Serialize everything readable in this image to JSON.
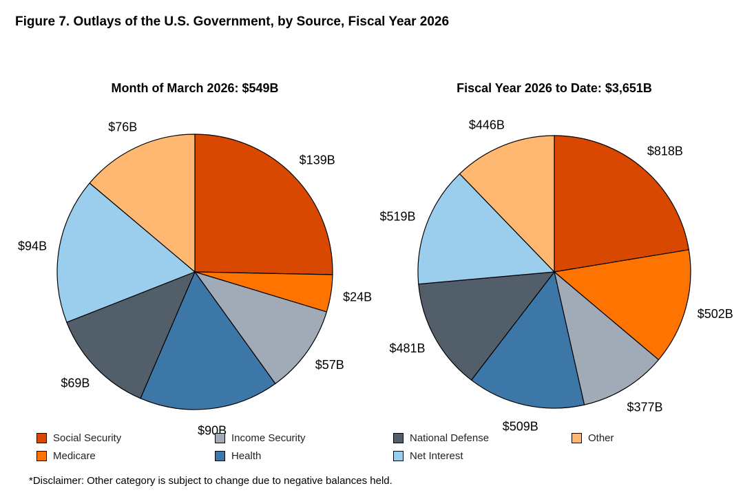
{
  "title": "Figure 7. Outlays of the U.S. Government, by Source, Fiscal Year 2026",
  "disclaimer": "*Disclaimer: Other category is subject to change due to negative balances held.",
  "chart_data": [
    {
      "type": "pie",
      "title": "Month of March 2026: $549B",
      "categories": [
        "Social Security",
        "Medicare",
        "Income Security",
        "Health",
        "National Defense",
        "Net Interest",
        "Other"
      ],
      "values": [
        139,
        24,
        57,
        90,
        69,
        94,
        76
      ],
      "labels": [
        "$139B",
        "$24B",
        "$57B",
        "$90B",
        "$69B",
        "$94B",
        "$76B"
      ],
      "start": "top, clockwise"
    },
    {
      "type": "pie",
      "title": "Fiscal Year 2026 to Date: $3,651B",
      "categories": [
        "Social Security",
        "Medicare",
        "Income Security",
        "Health",
        "National Defense",
        "Net Interest",
        "Other"
      ],
      "values": [
        818,
        502,
        377,
        509,
        481,
        519,
        446
      ],
      "labels": [
        "$818B",
        "$502B",
        "$377B",
        "$509B",
        "$481B",
        "$519B",
        "$446B"
      ],
      "start": "top, clockwise"
    }
  ],
  "legend": [
    {
      "label": "Social Security",
      "color": "#D94801"
    },
    {
      "label": "Medicare",
      "color": "#FF7400"
    },
    {
      "label": "Income Security",
      "color": "#A1AAB7"
    },
    {
      "label": "Health",
      "color": "#3D77A8"
    },
    {
      "label": "National Defense",
      "color": "#535E6B"
    },
    {
      "label": "Net Interest",
      "color": "#9BCDEC"
    },
    {
      "label": "Other",
      "color": "#FFB871"
    }
  ]
}
